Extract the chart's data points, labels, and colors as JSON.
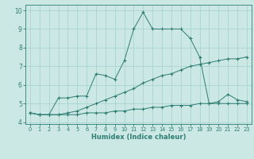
{
  "line1_x": [
    0,
    1,
    2,
    3,
    4,
    5,
    6,
    7,
    8,
    9,
    10,
    11,
    12,
    13,
    14,
    15,
    16,
    17,
    18,
    19,
    20,
    21,
    22,
    23
  ],
  "line1_y": [
    4.5,
    4.4,
    4.4,
    5.3,
    5.3,
    5.4,
    5.4,
    6.6,
    6.5,
    6.3,
    7.3,
    9.0,
    9.9,
    9.0,
    9.0,
    9.0,
    9.0,
    8.5,
    7.5,
    5.0,
    5.1,
    5.5,
    5.2,
    5.1
  ],
  "line2_x": [
    0,
    1,
    2,
    3,
    4,
    5,
    6,
    7,
    8,
    9,
    10,
    11,
    12,
    13,
    14,
    15,
    16,
    17,
    18,
    19,
    20,
    21,
    22,
    23
  ],
  "line2_y": [
    4.5,
    4.4,
    4.4,
    4.4,
    4.5,
    4.6,
    4.8,
    5.0,
    5.2,
    5.4,
    5.6,
    5.8,
    6.1,
    6.3,
    6.5,
    6.6,
    6.8,
    7.0,
    7.1,
    7.2,
    7.3,
    7.4,
    7.4,
    7.5
  ],
  "line3_x": [
    0,
    1,
    2,
    3,
    4,
    5,
    6,
    7,
    8,
    9,
    10,
    11,
    12,
    13,
    14,
    15,
    16,
    17,
    18,
    19,
    20,
    21,
    22,
    23
  ],
  "line3_y": [
    4.5,
    4.4,
    4.4,
    4.4,
    4.4,
    4.4,
    4.5,
    4.5,
    4.5,
    4.6,
    4.6,
    4.7,
    4.7,
    4.8,
    4.8,
    4.9,
    4.9,
    4.9,
    5.0,
    5.0,
    5.0,
    5.0,
    5.0,
    5.0
  ],
  "line_color": "#2e7d72",
  "bg_color": "#cce8e5",
  "grid_color": "#aad4d0",
  "xlabel": "Humidex (Indice chaleur)",
  "ylim": [
    3.9,
    10.3
  ],
  "xlim": [
    -0.5,
    23.5
  ],
  "yticks": [
    4,
    5,
    6,
    7,
    8,
    9,
    10
  ],
  "xticks": [
    0,
    1,
    2,
    3,
    4,
    5,
    6,
    7,
    8,
    9,
    10,
    11,
    12,
    13,
    14,
    15,
    16,
    17,
    18,
    19,
    20,
    21,
    22,
    23
  ]
}
